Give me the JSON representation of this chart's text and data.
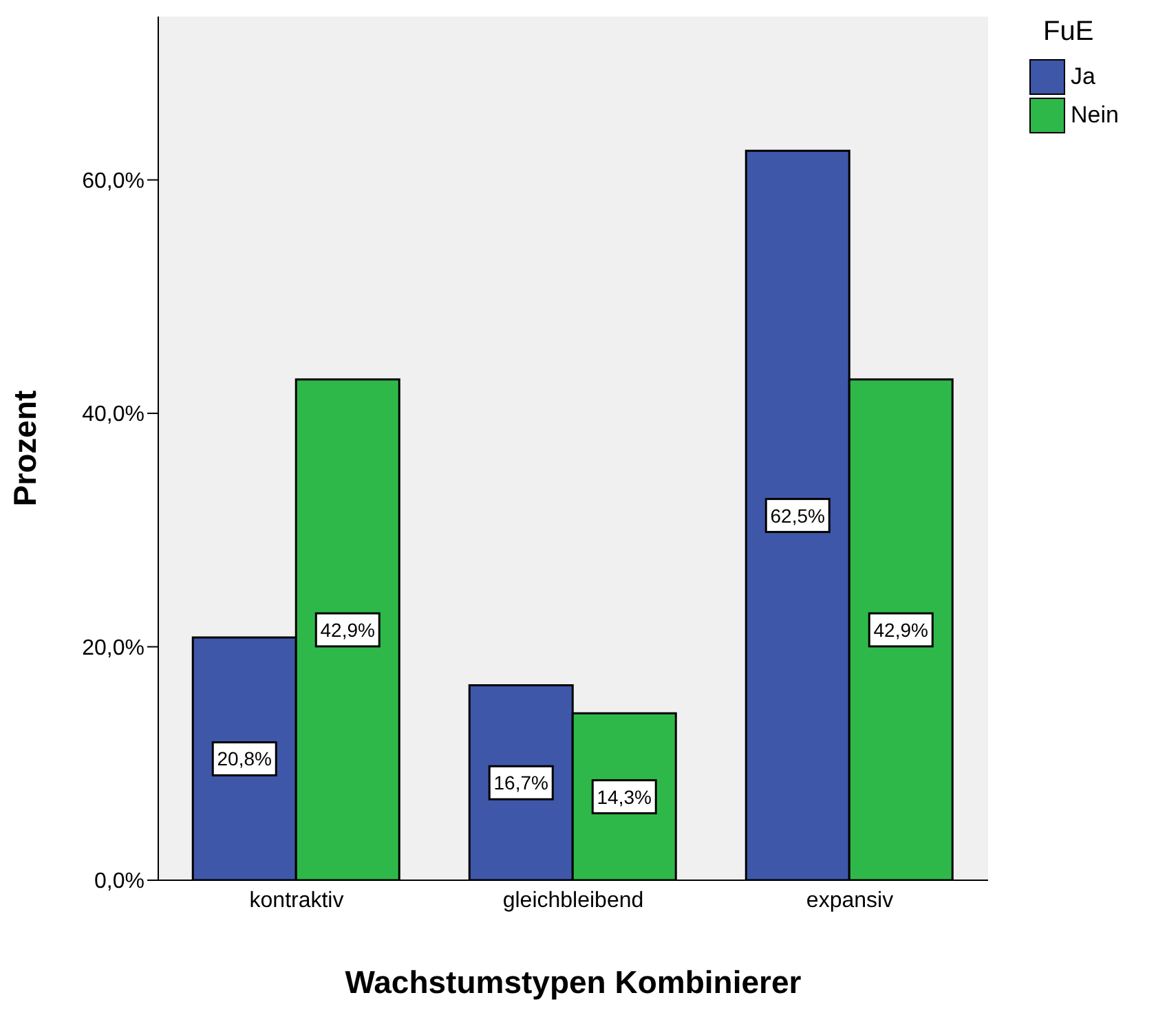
{
  "chart_data": {
    "type": "bar",
    "xlabel": "Wachstumstypen Kombinierer",
    "ylabel": "Prozent",
    "legend_title": "FuE",
    "categories": [
      "kontraktiv",
      "gleichbleibend",
      "expansiv"
    ],
    "series": [
      {
        "name": "Ja",
        "color": "#3f57a9",
        "values": [
          20.8,
          16.7,
          62.5
        ],
        "value_labels": [
          "20,8%",
          "16,7%",
          "62,5%"
        ]
      },
      {
        "name": "Nein",
        "color": "#2fb84a",
        "values": [
          42.9,
          14.3,
          42.9
        ],
        "value_labels": [
          "42,9%",
          "14,3%",
          "42,9%"
        ]
      }
    ],
    "ylim": [
      0,
      74
    ],
    "yticks": [
      {
        "value": 0,
        "label": "0,0%"
      },
      {
        "value": 20,
        "label": "20,0%"
      },
      {
        "value": 40,
        "label": "40,0%"
      },
      {
        "value": 60,
        "label": "60,0%"
      }
    ],
    "grid": false,
    "legend": "top right"
  }
}
